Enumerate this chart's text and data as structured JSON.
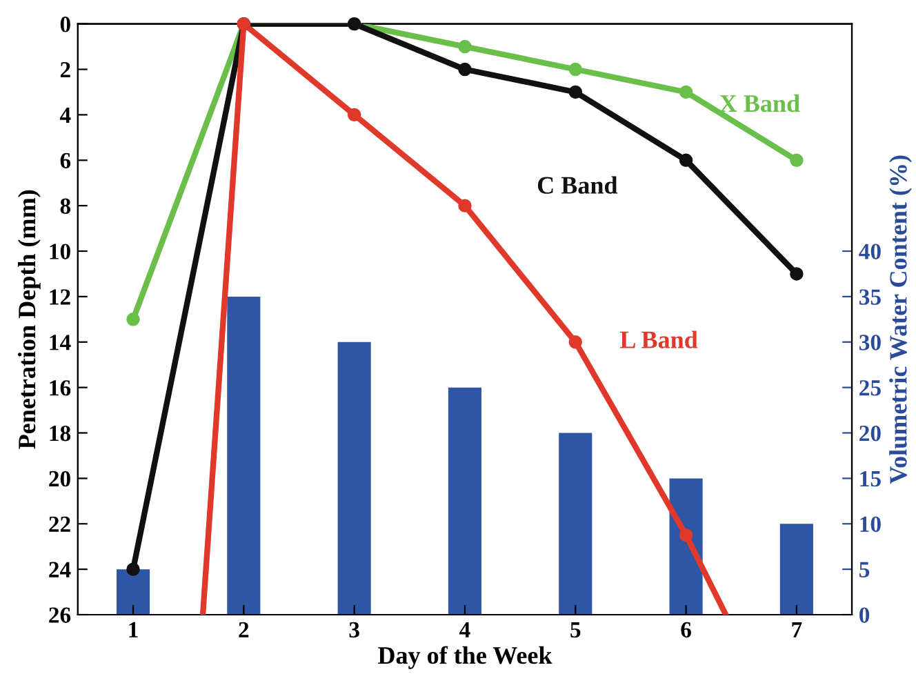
{
  "chart_data": {
    "type": "line",
    "xlabel": "Day of the Week",
    "ylabel": "Penetration Depth (mm)",
    "y2label": "Volumetric Water Content (%)",
    "xlim": [
      0.5,
      7.5
    ],
    "xticks": [
      1,
      2,
      3,
      4,
      5,
      6,
      7
    ],
    "ylim": [
      26,
      0
    ],
    "yticks": [
      0,
      2,
      4,
      6,
      8,
      10,
      12,
      14,
      16,
      18,
      20,
      22,
      24,
      26
    ],
    "y2lim": [
      0,
      65
    ],
    "y2ticks": [
      0,
      5,
      10,
      15,
      20,
      25,
      30,
      35,
      40
    ],
    "x": [
      1,
      2,
      3,
      4,
      5,
      6,
      7
    ],
    "marker": "circle",
    "line_style": "solid",
    "grid": false,
    "legend": false,
    "series": [
      {
        "type": "bar",
        "axis": "y2",
        "color": "#2f56a4",
        "values": [
          5,
          35,
          30,
          25,
          20,
          15,
          10
        ]
      },
      {
        "name": "X Band",
        "color": "#6abf4b",
        "values": [
          13,
          0,
          0,
          1,
          2,
          3,
          6
        ]
      },
      {
        "name": "C Band",
        "color": "#111111",
        "values": [
          24,
          0,
          0,
          2,
          3,
          6,
          11
        ]
      },
      {
        "name": "L Band",
        "color": "#e0392b",
        "x": [
          1.63,
          2,
          3,
          4,
          5,
          6,
          6.36
        ],
        "values": [
          26,
          0,
          4,
          8,
          14,
          22.5,
          26
        ]
      }
    ]
  }
}
